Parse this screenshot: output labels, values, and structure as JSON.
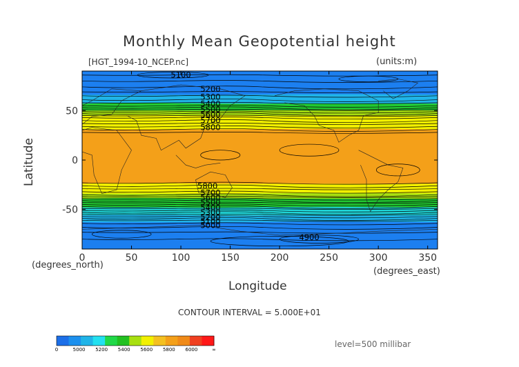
{
  "chart_data": {
    "type": "contour",
    "title": "Monthly Mean Geopotential height",
    "source_label": "[HGT_1994-10_NCEP.nc]",
    "units_label": "(units:m)",
    "xlabel": "Longitude",
    "ylabel": "Latitude",
    "x_unit_label": "(degrees_east)",
    "y_unit_label": "(degrees_north)",
    "xlim": [
      0,
      360
    ],
    "ylim": [
      -90,
      90
    ],
    "x_ticks": [
      "0",
      "50",
      "100",
      "150",
      "200",
      "250",
      "300",
      "350"
    ],
    "x_tick_values": [
      0,
      50,
      100,
      150,
      200,
      250,
      300,
      350
    ],
    "y_ticks": [
      "50",
      "0",
      "-50"
    ],
    "y_tick_values": [
      50,
      0,
      -50
    ],
    "contour_interval_text": "CONTOUR INTERVAL = 5.000E+01",
    "level_text": "level=500 millibar",
    "contour_labels": [
      {
        "text": "5100",
        "lon": 100,
        "lat": 86
      },
      {
        "text": "5200",
        "lon": 130,
        "lat": 72
      },
      {
        "text": "5300",
        "lon": 130,
        "lat": 64
      },
      {
        "text": "5400",
        "lon": 130,
        "lat": 57
      },
      {
        "text": "5500",
        "lon": 130,
        "lat": 51
      },
      {
        "text": "5600",
        "lon": 130,
        "lat": 46
      },
      {
        "text": "5700",
        "lon": 130,
        "lat": 40
      },
      {
        "text": "5800",
        "lon": 130,
        "lat": 33
      },
      {
        "text": "5800",
        "lon": 127,
        "lat": -26
      },
      {
        "text": "5700",
        "lon": 130,
        "lat": -33
      },
      {
        "text": "5600",
        "lon": 130,
        "lat": -38
      },
      {
        "text": "5500",
        "lon": 130,
        "lat": -43
      },
      {
        "text": "5400",
        "lon": 130,
        "lat": -48
      },
      {
        "text": "5300",
        "lon": 130,
        "lat": -53
      },
      {
        "text": "5200",
        "lon": 130,
        "lat": -58
      },
      {
        "text": "5100",
        "lon": 130,
        "lat": -62
      },
      {
        "text": "5000",
        "lon": 130,
        "lat": -66
      },
      {
        "text": "4900",
        "lon": 230,
        "lat": -78
      }
    ],
    "bands": [
      {
        "lat_top": 90,
        "lat_bottom": 66,
        "color": "#1c7ff0"
      },
      {
        "lat_top": 66,
        "lat_bottom": 57,
        "color": "#20b4e8"
      },
      {
        "lat_top": 57,
        "lat_bottom": 50,
        "color": "#22c932"
      },
      {
        "lat_top": 50,
        "lat_bottom": 45,
        "color": "#a8e010"
      },
      {
        "lat_top": 45,
        "lat_bottom": 31,
        "color": "#f2f000"
      },
      {
        "lat_top": 31,
        "lat_bottom": -24,
        "color": "#f4a019"
      },
      {
        "lat_top": -24,
        "lat_bottom": -34,
        "color": "#f2f000"
      },
      {
        "lat_top": -34,
        "lat_bottom": -39,
        "color": "#a8e010"
      },
      {
        "lat_top": -39,
        "lat_bottom": -48,
        "color": "#22c932"
      },
      {
        "lat_top": -48,
        "lat_bottom": -56,
        "color": "#20d6d8"
      },
      {
        "lat_top": -56,
        "lat_bottom": -63,
        "color": "#20b4e8"
      },
      {
        "lat_top": -63,
        "lat_bottom": -90,
        "color": "#1c7ff0"
      }
    ],
    "colorbar": {
      "colors": [
        "#1c6fe8",
        "#1c90ee",
        "#20b4e8",
        "#22e0f0",
        "#20d848",
        "#22c020",
        "#a8e010",
        "#f2f000",
        "#f4c020",
        "#f4a019",
        "#f08a18",
        "#f04020",
        "#ff1818"
      ],
      "labels": [
        "0",
        "5000",
        "5200",
        "5400",
        "5600",
        "5800",
        "6000",
        "∞"
      ]
    }
  }
}
